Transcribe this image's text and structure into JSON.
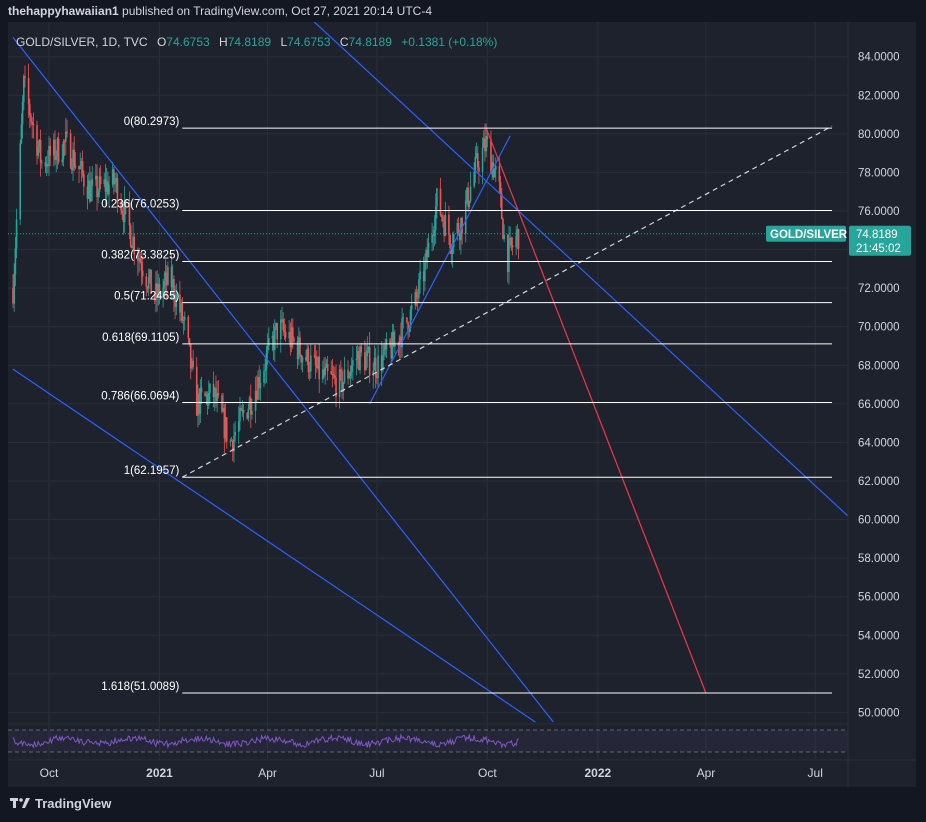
{
  "header": {
    "author": "thehappyhawaiian1",
    "text": "published on TradingView.com, Oct 27, 2021 20:14 UTC-4"
  },
  "legend": {
    "symbol": "GOLD/SILVER, 1D, TVC",
    "open_label": "O",
    "open": "74.6753",
    "high_label": "H",
    "high": "74.8189",
    "low_label": "L",
    "low": "74.6753",
    "close_label": "C",
    "close": "74.8189",
    "change": "+0.1381 (+0.18%)"
  },
  "price_badge": {
    "symbol": "GOLD/SILVER",
    "price": "74.8189",
    "countdown": "21:45:02",
    "color": "#26a69a"
  },
  "footer": {
    "brand": "TradingView"
  },
  "colors": {
    "up": "#26a69a",
    "down": "#ef5350",
    "trend": "#2962ff",
    "fib": "#ffffff",
    "rsi": "#7e57c2",
    "grid": "#2a2e39"
  },
  "chart_data": {
    "type": "candlestick",
    "symbol": "GOLD/SILVER",
    "interval": "1D",
    "ylim": [
      49.4,
      85.8
    ],
    "y_ticks": [
      "84.0000",
      "82.0000",
      "80.0000",
      "78.0000",
      "76.0000",
      "74.0000",
      "72.0000",
      "70.0000",
      "68.0000",
      "66.0000",
      "64.0000",
      "62.0000",
      "60.0000",
      "58.0000",
      "56.0000",
      "54.0000",
      "52.0000",
      "50.0000"
    ],
    "x_ticks": [
      "Oct",
      "2021",
      "Apr",
      "Jul",
      "Oct",
      "2022",
      "Apr",
      "Jul"
    ],
    "bold_x_ticks": [
      "2021",
      "2022"
    ],
    "last_price": 74.8189,
    "price_path": [
      {
        "date": "2020-09-01",
        "v": 72.0
      },
      {
        "date": "2020-09-10",
        "v": 82.5
      },
      {
        "date": "2020-09-25",
        "v": 78.5
      },
      {
        "date": "2020-10-15",
        "v": 79.5
      },
      {
        "date": "2020-11-05",
        "v": 77.0
      },
      {
        "date": "2020-11-25",
        "v": 77.5
      },
      {
        "date": "2020-12-10",
        "v": 74.5
      },
      {
        "date": "2020-12-28",
        "v": 71.5
      },
      {
        "date": "2021-01-10",
        "v": 72.5
      },
      {
        "date": "2021-01-22",
        "v": 70.0
      },
      {
        "date": "2021-02-01",
        "v": 66.0
      },
      {
        "date": "2021-02-15",
        "v": 66.5
      },
      {
        "date": "2021-03-01",
        "v": 64.0
      },
      {
        "date": "2021-03-20",
        "v": 66.5
      },
      {
        "date": "2021-04-10",
        "v": 70.0
      },
      {
        "date": "2021-04-25",
        "v": 69.0
      },
      {
        "date": "2021-05-15",
        "v": 67.5
      },
      {
        "date": "2021-06-01",
        "v": 67.0
      },
      {
        "date": "2021-06-15",
        "v": 68.5
      },
      {
        "date": "2021-07-01",
        "v": 68.0
      },
      {
        "date": "2021-07-15",
        "v": 69.0
      },
      {
        "date": "2021-08-01",
        "v": 71.0
      },
      {
        "date": "2021-08-10",
        "v": 73.0
      },
      {
        "date": "2021-08-20",
        "v": 76.5
      },
      {
        "date": "2021-09-01",
        "v": 74.5
      },
      {
        "date": "2021-09-10",
        "v": 75.5
      },
      {
        "date": "2021-09-20",
        "v": 78.0
      },
      {
        "date": "2021-09-30",
        "v": 79.5
      },
      {
        "date": "2021-10-10",
        "v": 77.5
      },
      {
        "date": "2021-10-17",
        "v": 73.5
      },
      {
        "date": "2021-10-27",
        "v": 74.8189
      }
    ],
    "fibonacci": {
      "levels": [
        {
          "label": "0(80.2973)",
          "value": 80.2973
        },
        {
          "label": "0.236(76.0253)",
          "value": 76.0253
        },
        {
          "label": "0.382(73.3825)",
          "value": 73.3825
        },
        {
          "label": "0.5(71.2465)",
          "value": 71.2465
        },
        {
          "label": "0.618(69.1105)",
          "value": 69.1105
        },
        {
          "label": "0.786(66.0694)",
          "value": 66.0694
        },
        {
          "label": "1(62.1957)",
          "value": 62.1957
        },
        {
          "label": "1.618(51.0089)",
          "value": 51.0089
        }
      ],
      "from_date": "2021-01-20",
      "to_date": "2022-07-15"
    },
    "trendlines": [
      {
        "color": "blue",
        "style": "solid",
        "p1": {
          "date": "2020-09-01",
          "v": 85.0
        },
        "p2": {
          "date": "2021-11-25",
          "v": 49.5
        }
      },
      {
        "color": "blue",
        "style": "solid",
        "p1": {
          "date": "2020-09-01",
          "v": 67.8
        },
        "p2": {
          "date": "2021-11-10",
          "v": 49.5
        }
      },
      {
        "color": "blue",
        "style": "solid",
        "p1": {
          "date": "2021-05-10",
          "v": 85.8
        },
        "p2": {
          "date": "2022-08-30",
          "v": 58.3
        }
      },
      {
        "color": "blue",
        "style": "solid",
        "p1": {
          "date": "2021-06-25",
          "v": 66.0
        },
        "p2": {
          "date": "2021-10-20",
          "v": 79.9
        }
      },
      {
        "color": "white",
        "style": "dashed",
        "p1": {
          "date": "2021-01-20",
          "v": 62.2
        },
        "p2": {
          "date": "2022-07-15",
          "v": 80.4
        }
      },
      {
        "color": "red",
        "style": "solid",
        "p1": {
          "date": "2021-09-30",
          "v": 80.3
        },
        "p2": {
          "date": "2022-04-01",
          "v": 51.0
        }
      }
    ],
    "rsi_panel": {
      "series_color": "#7e57c2",
      "bands": "dashed upper and lower bands"
    }
  }
}
